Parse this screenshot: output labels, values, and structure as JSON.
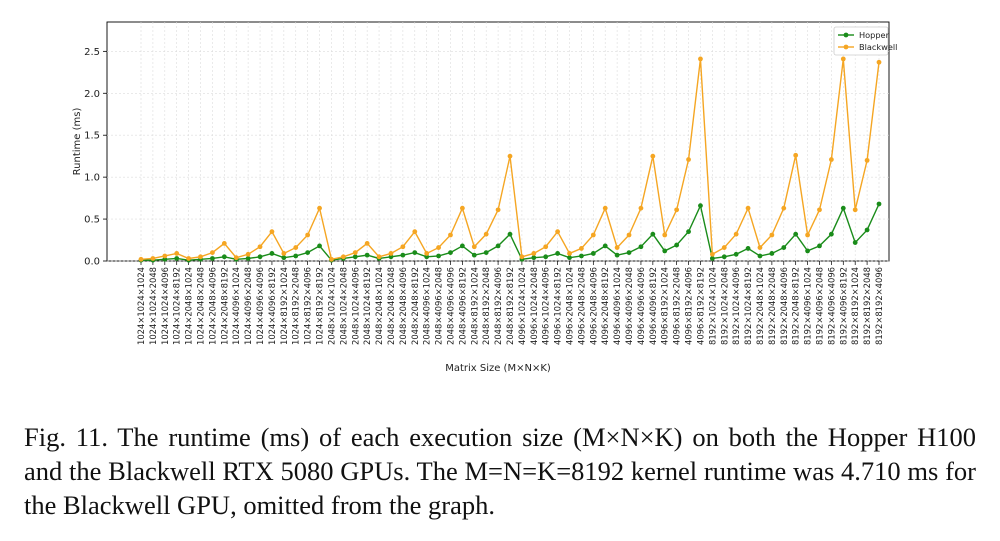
{
  "chart_data": {
    "type": "line",
    "xlabel": "Matrix Size (M×N×K)",
    "ylabel": "Runtime (ms)",
    "ylim": [
      0,
      2.85
    ],
    "yticks": [
      "0.0",
      "0.5",
      "1.0",
      "1.5",
      "2.0",
      "2.5"
    ],
    "grid": true,
    "legend_position": "top-right",
    "categories": [
      "1024×1024×1024",
      "1024×1024×2048",
      "1024×1024×4096",
      "1024×1024×8192",
      "1024×2048×1024",
      "1024×2048×2048",
      "1024×2048×4096",
      "1024×2048×8192",
      "1024×4096×1024",
      "1024×4096×2048",
      "1024×4096×4096",
      "1024×4096×8192",
      "1024×8192×1024",
      "1024×8192×2048",
      "1024×8192×4096",
      "1024×8192×8192",
      "2048×1024×1024",
      "2048×1024×2048",
      "2048×1024×4096",
      "2048×1024×8192",
      "2048×2048×1024",
      "2048×2048×2048",
      "2048×2048×4096",
      "2048×2048×8192",
      "2048×4096×1024",
      "2048×4096×2048",
      "2048×4096×4096",
      "2048×4096×8192",
      "2048×8192×1024",
      "2048×8192×2048",
      "2048×8192×4096",
      "2048×8192×8192",
      "4096×1024×1024",
      "4096×1024×2048",
      "4096×1024×4096",
      "4096×1024×8192",
      "4096×2048×1024",
      "4096×2048×2048",
      "4096×2048×4096",
      "4096×2048×8192",
      "4096×4096×1024",
      "4096×4096×2048",
      "4096×4096×4096",
      "4096×4096×8192",
      "4096×8192×1024",
      "4096×8192×2048",
      "4096×8192×4096",
      "4096×8192×8192",
      "8192×1024×1024",
      "8192×1024×2048",
      "8192×1024×4096",
      "8192×1024×8192",
      "8192×2048×1024",
      "8192×2048×2048",
      "8192×2048×4096",
      "8192×2048×8192",
      "8192×4096×1024",
      "8192×4096×2048",
      "8192×4096×4096",
      "8192×4096×8192",
      "8192×8192×1024",
      "8192×8192×2048",
      "8192×8192×4096"
    ],
    "series": [
      {
        "name": "Hopper",
        "color": "#1a8c1a",
        "values": [
          0.01,
          0.01,
          0.02,
          0.03,
          0.01,
          0.02,
          0.03,
          0.05,
          0.02,
          0.03,
          0.05,
          0.09,
          0.04,
          0.06,
          0.1,
          0.18,
          0.01,
          0.03,
          0.05,
          0.07,
          0.03,
          0.05,
          0.07,
          0.1,
          0.05,
          0.06,
          0.1,
          0.18,
          0.07,
          0.1,
          0.18,
          0.32,
          0.02,
          0.04,
          0.05,
          0.09,
          0.04,
          0.06,
          0.09,
          0.18,
          0.07,
          0.1,
          0.17,
          0.32,
          0.12,
          0.19,
          0.35,
          0.66,
          0.03,
          0.05,
          0.08,
          0.15,
          0.06,
          0.09,
          0.16,
          0.32,
          0.12,
          0.18,
          0.32,
          0.63,
          0.22,
          0.37,
          0.68
        ]
      },
      {
        "name": "Blackwell",
        "color": "#f5a623",
        "values": [
          0.02,
          0.03,
          0.06,
          0.09,
          0.03,
          0.05,
          0.1,
          0.21,
          0.04,
          0.08,
          0.17,
          0.35,
          0.09,
          0.16,
          0.31,
          0.63,
          0.02,
          0.05,
          0.1,
          0.21,
          0.05,
          0.09,
          0.17,
          0.35,
          0.09,
          0.16,
          0.31,
          0.63,
          0.17,
          0.32,
          0.61,
          1.25,
          0.05,
          0.09,
          0.17,
          0.35,
          0.09,
          0.15,
          0.31,
          0.63,
          0.16,
          0.31,
          0.63,
          1.25,
          0.31,
          0.61,
          1.21,
          2.41,
          0.08,
          0.16,
          0.32,
          0.63,
          0.16,
          0.31,
          0.63,
          1.26,
          0.31,
          0.61,
          1.21,
          2.41,
          0.61,
          1.2,
          2.37
        ]
      }
    ]
  },
  "caption": "Fig. 11.  The runtime (ms) of each execution size (M×N×K) on both the Hopper H100 and the Blackwell RTX 5080 GPUs. The M=N=K=8192 kernel runtime was 4.710 ms for the Blackwell GPU, omitted from the graph."
}
